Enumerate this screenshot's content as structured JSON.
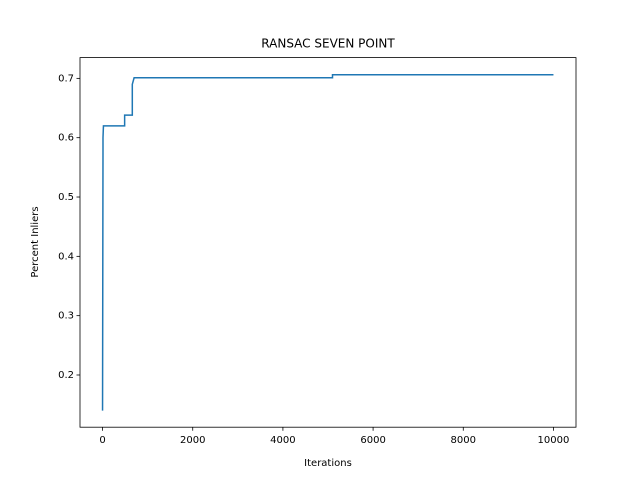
{
  "chart_data": {
    "type": "line",
    "title": "RANSAC SEVEN POINT",
    "xlabel": "Iterations",
    "ylabel": "Percent Inliers",
    "x": [
      0,
      10,
      10,
      20,
      490,
      490,
      660,
      660,
      700,
      5100,
      5100,
      10000
    ],
    "series": [
      {
        "color": "#1f77b4",
        "values": [
          0.14,
          0.58,
          0.6,
          0.62,
          0.62,
          0.638,
          0.638,
          0.69,
          0.701,
          0.701,
          0.706,
          0.706
        ]
      }
    ],
    "xlim": [
      -500,
      10500
    ],
    "ylim": [
      0.112,
      0.735
    ],
    "xticks": [
      0,
      2000,
      4000,
      6000,
      8000,
      10000
    ],
    "yticks": [
      0.2,
      0.3,
      0.4,
      0.5,
      0.6,
      0.7
    ]
  }
}
